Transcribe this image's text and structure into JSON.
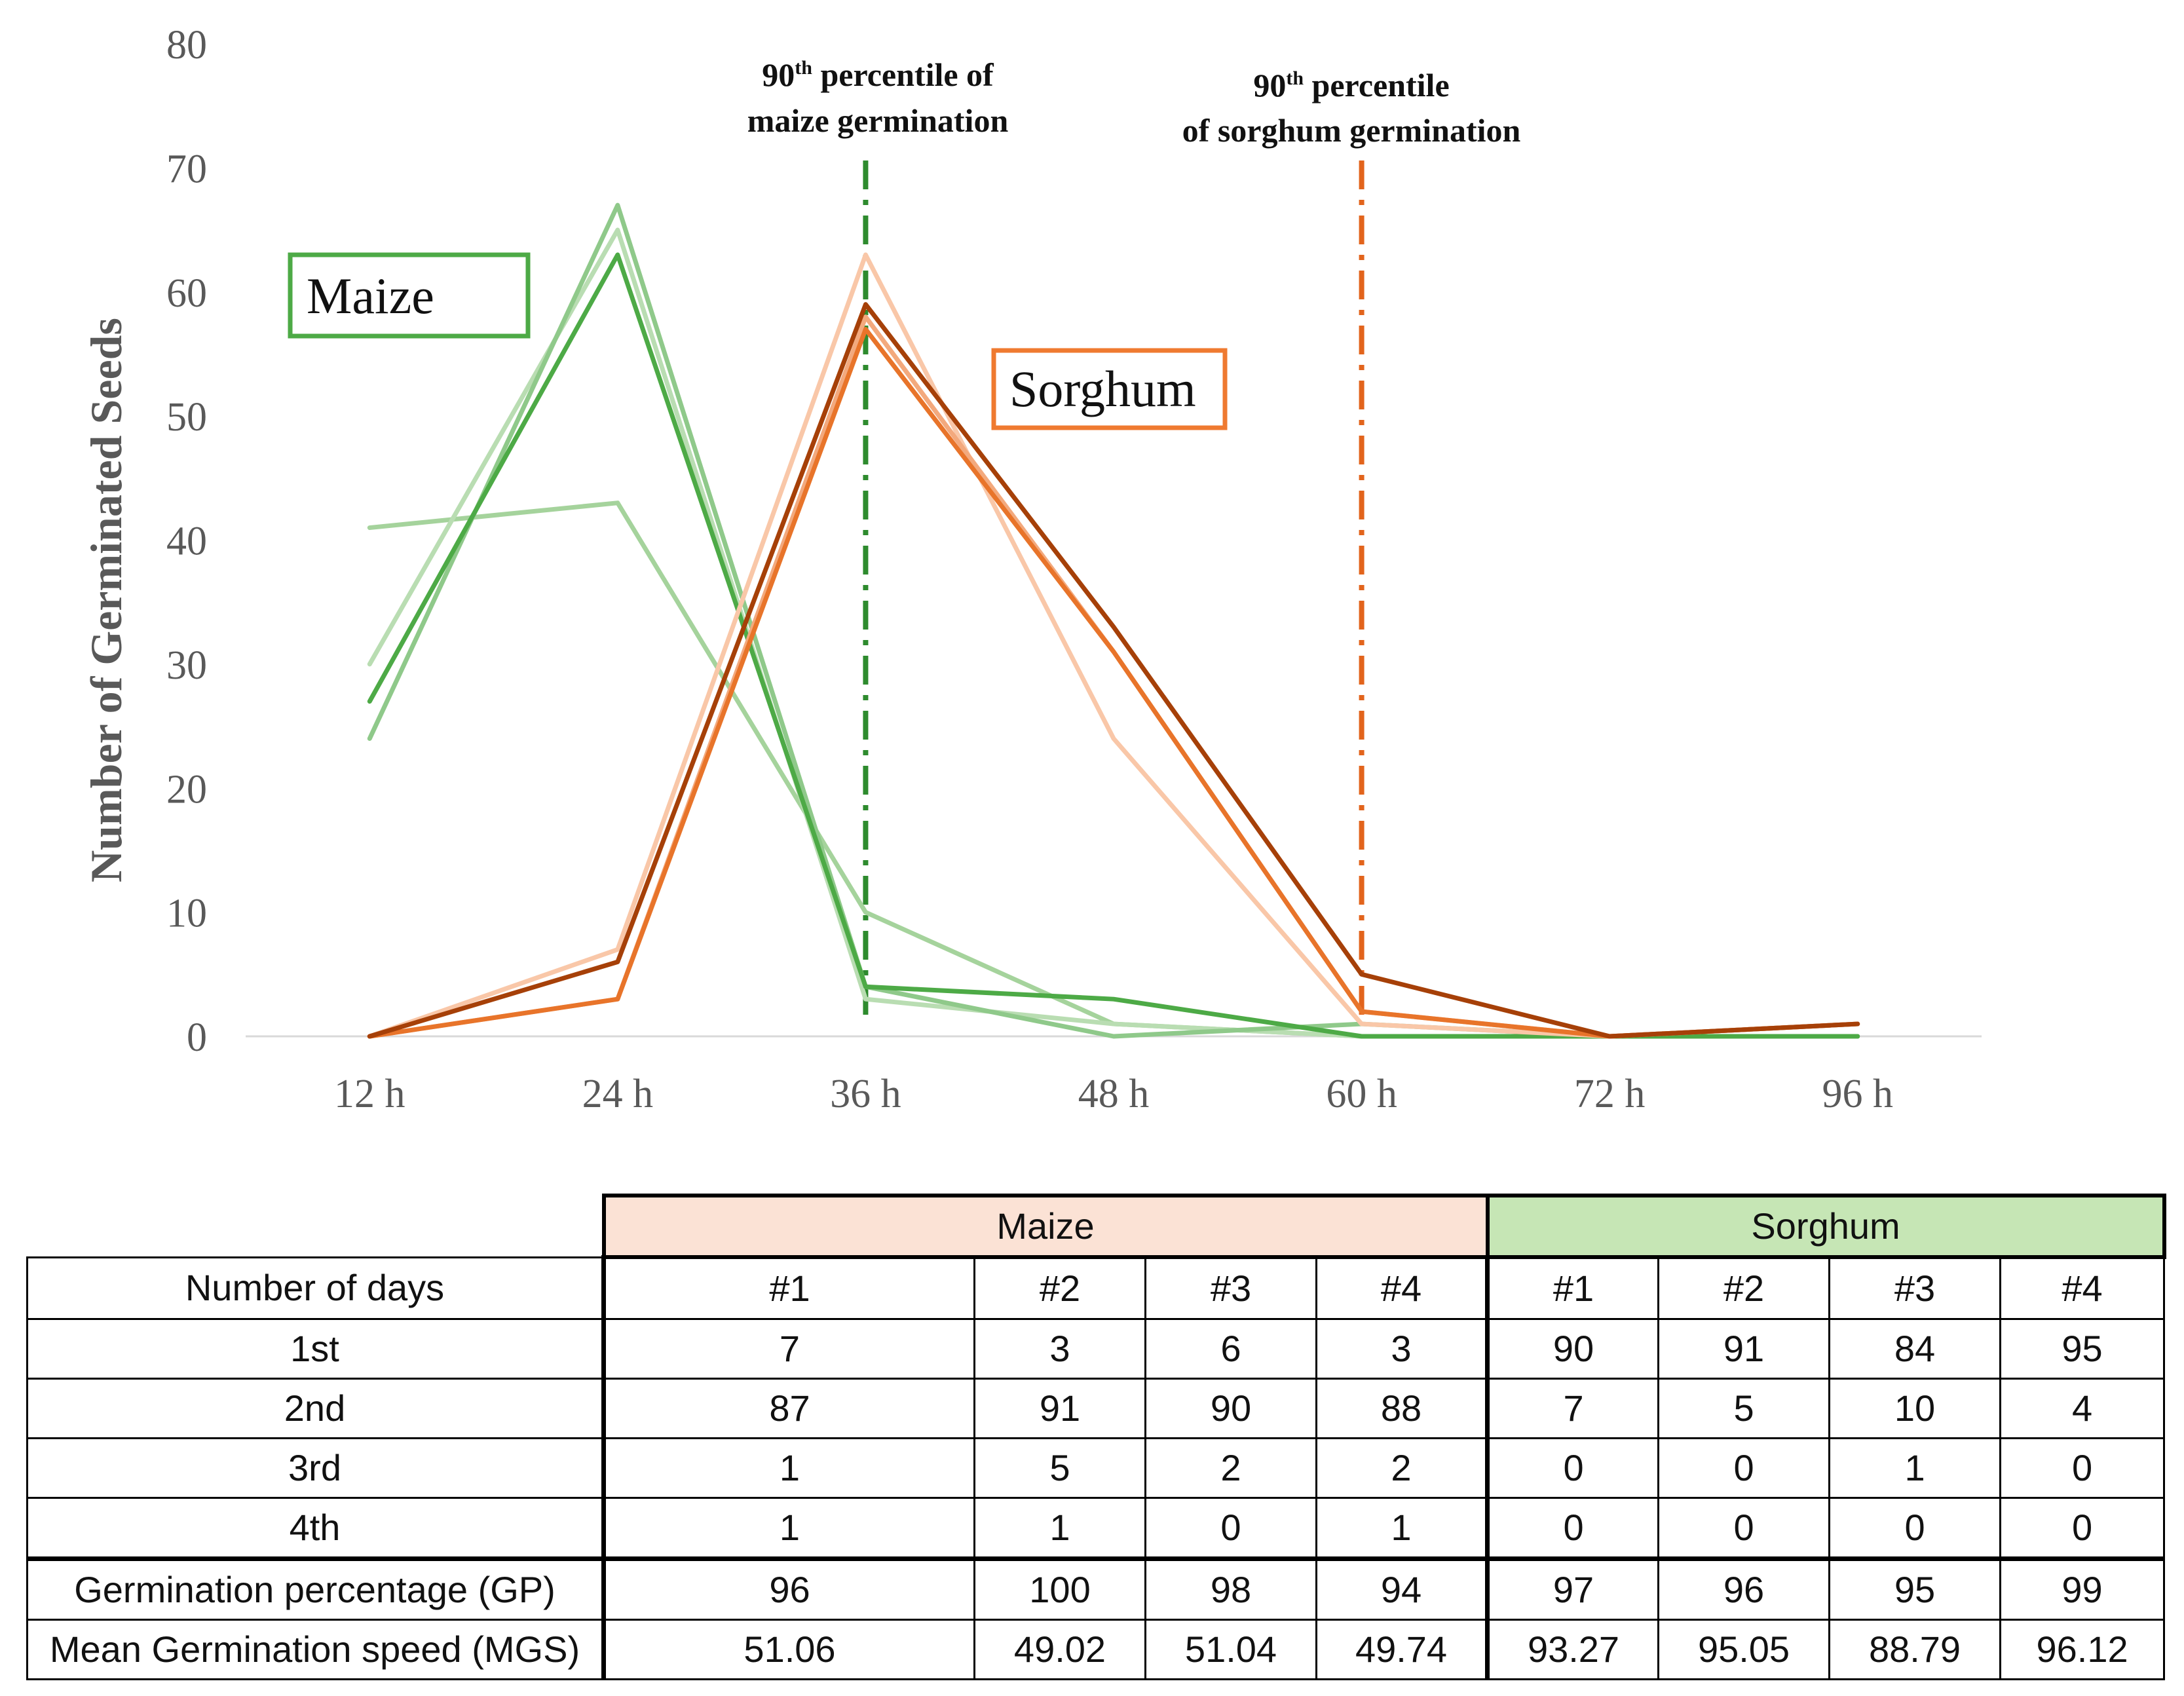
{
  "chart_data": {
    "type": "line",
    "ylabel": "Number of Germinated Seeds",
    "ylim": [
      0,
      80
    ],
    "yticks": [
      0,
      10,
      20,
      30,
      40,
      50,
      60,
      70,
      80
    ],
    "categories": [
      "12 h",
      "24 h",
      "36 h",
      "48 h",
      "60 h",
      "72 h",
      "96 h"
    ],
    "series": [
      {
        "name": "Maize #1",
        "group": "maize",
        "color": "#4daa46",
        "values": [
          27,
          63,
          4,
          3,
          0,
          0,
          0
        ]
      },
      {
        "name": "Maize #2",
        "group": "maize",
        "color": "#8fc98a",
        "values": [
          24,
          67,
          4,
          0,
          1,
          0,
          0
        ]
      },
      {
        "name": "Maize #3",
        "group": "maize",
        "color": "#b9ddb2",
        "values": [
          30,
          65,
          3,
          1,
          0,
          0,
          0
        ]
      },
      {
        "name": "Maize #4",
        "group": "maize",
        "color": "#a5d39c",
        "values": [
          41,
          43,
          10,
          1,
          0,
          0,
          0
        ]
      },
      {
        "name": "Sorghum #1",
        "group": "sorghum",
        "color": "#a64008",
        "values": [
          0,
          6,
          59,
          33,
          5,
          0,
          1
        ]
      },
      {
        "name": "Sorghum #2",
        "group": "sorghum",
        "color": "#e8742a",
        "values": [
          0,
          3,
          57,
          31,
          2,
          0,
          1
        ]
      },
      {
        "name": "Sorghum #3",
        "group": "sorghum",
        "color": "#f3a97d",
        "values": [
          0,
          3,
          58,
          31,
          2,
          0,
          1
        ]
      },
      {
        "name": "Sorghum #4",
        "group": "sorghum",
        "color": "#f9c7a8",
        "values": [
          0,
          7,
          63,
          24,
          1,
          0,
          1
        ]
      }
    ],
    "reference_lines": [
      {
        "name": "maize-90th",
        "x": 2,
        "color": "#2e8b2e",
        "label_line1_num": "90",
        "label_line1_sup": "th",
        "label_line1_rest": " percentile of",
        "label_line2": "maize germination"
      },
      {
        "name": "sorghum-90th",
        "x": 4,
        "color": "#e2641c",
        "label_line1_num": "90",
        "label_line1_sup": "th",
        "label_line1_rest": " percentile",
        "label_line2": "of sorghum germination"
      }
    ],
    "annotations": [
      {
        "name": "maize-label",
        "text": "Maize",
        "color": "#4daa46"
      },
      {
        "name": "sorghum-label",
        "text": "Sorghum",
        "color": "#ef7a30"
      }
    ]
  },
  "table": {
    "maize_header": "Maize",
    "sorghum_header": "Sorghum",
    "colheaders": [
      "Number of days",
      "#1",
      "#2",
      "#3",
      "#4",
      "#1",
      "#2",
      "#3",
      "#4"
    ],
    "rows": [
      [
        "1st",
        "7",
        "3",
        "6",
        "3",
        "90",
        "91",
        "84",
        "95"
      ],
      [
        "2nd",
        "87",
        "91",
        "90",
        "88",
        "7",
        "5",
        "10",
        "4"
      ],
      [
        "3rd",
        "1",
        "5",
        "2",
        "2",
        "0",
        "0",
        "1",
        "0"
      ],
      [
        "4th",
        "1",
        "1",
        "0",
        "1",
        "0",
        "0",
        "0",
        "0"
      ],
      [
        "Germination percentage (GP)",
        "96",
        "100",
        "98",
        "94",
        "97",
        "96",
        "95",
        "99"
      ],
      [
        "Mean Germination speed (MGS)",
        "51.06",
        "49.02",
        "51.04",
        "49.74",
        "93.27",
        "95.05",
        "88.79",
        "96.12"
      ]
    ]
  }
}
